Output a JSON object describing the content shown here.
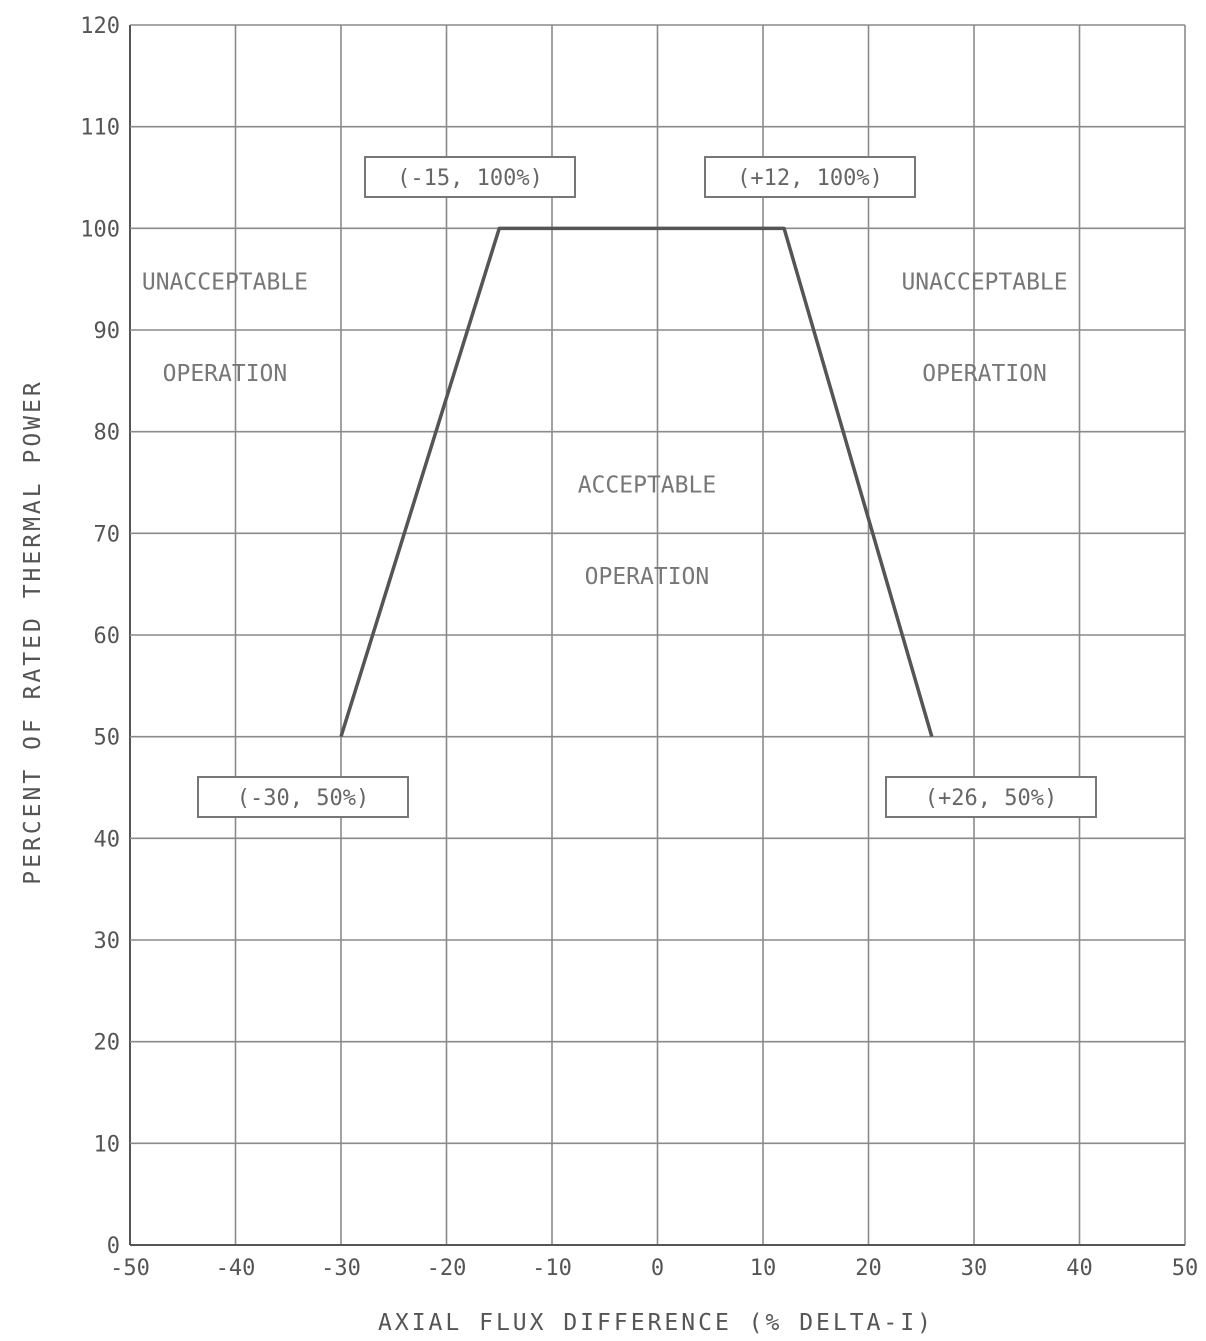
{
  "chart_data": {
    "type": "line",
    "title": "",
    "xlabel": "AXIAL FLUX DIFFERENCE (% DELTA-I)",
    "ylabel": "PERCENT OF RATED THERMAL POWER",
    "xlim": [
      -50,
      50
    ],
    "ylim": [
      0,
      120
    ],
    "x_ticks": [
      -50,
      -40,
      -30,
      -20,
      -10,
      0,
      10,
      20,
      30,
      40,
      50
    ],
    "y_ticks": [
      0,
      10,
      20,
      30,
      40,
      50,
      60,
      70,
      80,
      90,
      100,
      110,
      120
    ],
    "grid": true,
    "series": [
      {
        "x": [
          -30,
          -15,
          12,
          26
        ],
        "y": [
          50,
          100,
          100,
          50
        ]
      }
    ],
    "point_labels": [
      {
        "text": "(-15, 100%)",
        "x": -15,
        "y": 100
      },
      {
        "text": "(+12, 100%)",
        "x": 12,
        "y": 100
      },
      {
        "text": "(-30, 50%)",
        "x": -30,
        "y": 50
      },
      {
        "text": "(+26, 50%)",
        "x": 26,
        "y": 50
      }
    ],
    "region_labels": {
      "left_unacceptable": [
        "UNACCEPTABLE",
        "OPERATION"
      ],
      "acceptable": [
        "ACCEPTABLE",
        "OPERATION"
      ],
      "right_unacceptable": [
        "UNACCEPTABLE",
        "OPERATION"
      ]
    },
    "colors": {
      "line": "#555555",
      "grid": "#8a8a8a",
      "text": "#555555"
    }
  }
}
